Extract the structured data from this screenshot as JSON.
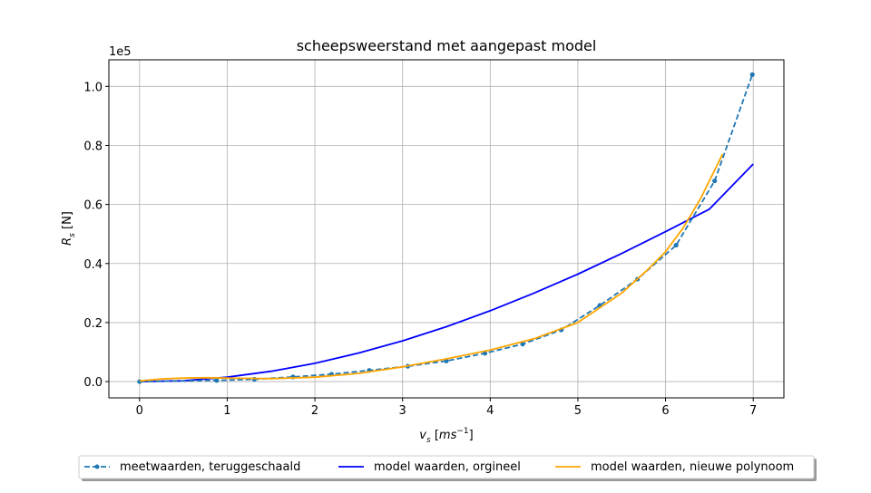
{
  "chart_data": {
    "type": "line",
    "title": "scheepsweerstand met aangepast model",
    "xlabel": {
      "main": "v",
      "sub": "s",
      "unit_open": " [",
      "unit_base": "ms",
      "unit_sup": "−1",
      "unit_close": "]"
    },
    "ylabel": {
      "main": "R",
      "sub": "s",
      "unit": " [N]"
    },
    "y_offset_label": "1e5",
    "xlim": [
      -0.35,
      7.35
    ],
    "ylim": [
      -0.055,
      1.09
    ],
    "x_ticks": [
      0,
      1,
      2,
      3,
      4,
      5,
      6,
      7
    ],
    "x_tick_labels": [
      "0",
      "1",
      "2",
      "3",
      "4",
      "5",
      "6",
      "7"
    ],
    "y_ticks": [
      0.0,
      0.2,
      0.4,
      0.6,
      0.8,
      1.0
    ],
    "y_tick_labels": [
      "0.0",
      "0.2",
      "0.4",
      "0.6",
      "0.8",
      "1.0"
    ],
    "grid": true,
    "legend_position": "bottom",
    "series": [
      {
        "name": "meetwaarden, teruggeschaald",
        "style": "dashed-markers",
        "color": "#1f77b4",
        "x": [
          0,
          0.88,
          1.31,
          1.75,
          2.19,
          2.62,
          3.06,
          3.5,
          3.94,
          4.37,
          4.81,
          5.25,
          5.68,
          6.12,
          6.56,
          6.99
        ],
        "y": [
          0.0,
          0.004,
          0.008,
          0.016,
          0.025,
          0.038,
          0.052,
          0.07,
          0.096,
          0.127,
          0.175,
          0.258,
          0.347,
          0.462,
          0.68,
          1.04
        ]
      },
      {
        "name": "model waarden, orgineel",
        "style": "solid",
        "color": "#0000ff",
        "x": [
          0,
          0.5,
          1,
          1.5,
          2,
          2.5,
          3,
          3.5,
          4,
          4.5,
          5,
          5.5,
          6,
          6.5,
          7
        ],
        "y": [
          0.0,
          0.003,
          0.015,
          0.035,
          0.062,
          0.097,
          0.138,
          0.186,
          0.24,
          0.3,
          0.364,
          0.434,
          0.508,
          0.584,
          0.737
        ]
      },
      {
        "name": "model waarden, nieuwe polynoom",
        "style": "solid",
        "color": "#ffa500",
        "x": [
          0,
          0.25,
          0.5,
          0.75,
          1,
          1.5,
          2,
          2.5,
          3,
          3.5,
          4,
          4.5,
          5,
          5.5,
          5.8,
          6,
          6.2,
          6.4,
          6.6,
          6.65
        ],
        "y": [
          0.002,
          0.009,
          0.012,
          0.013,
          0.012,
          0.01,
          0.015,
          0.028,
          0.05,
          0.077,
          0.107,
          0.145,
          0.2,
          0.3,
          0.38,
          0.44,
          0.52,
          0.62,
          0.74,
          0.77
        ]
      }
    ]
  }
}
